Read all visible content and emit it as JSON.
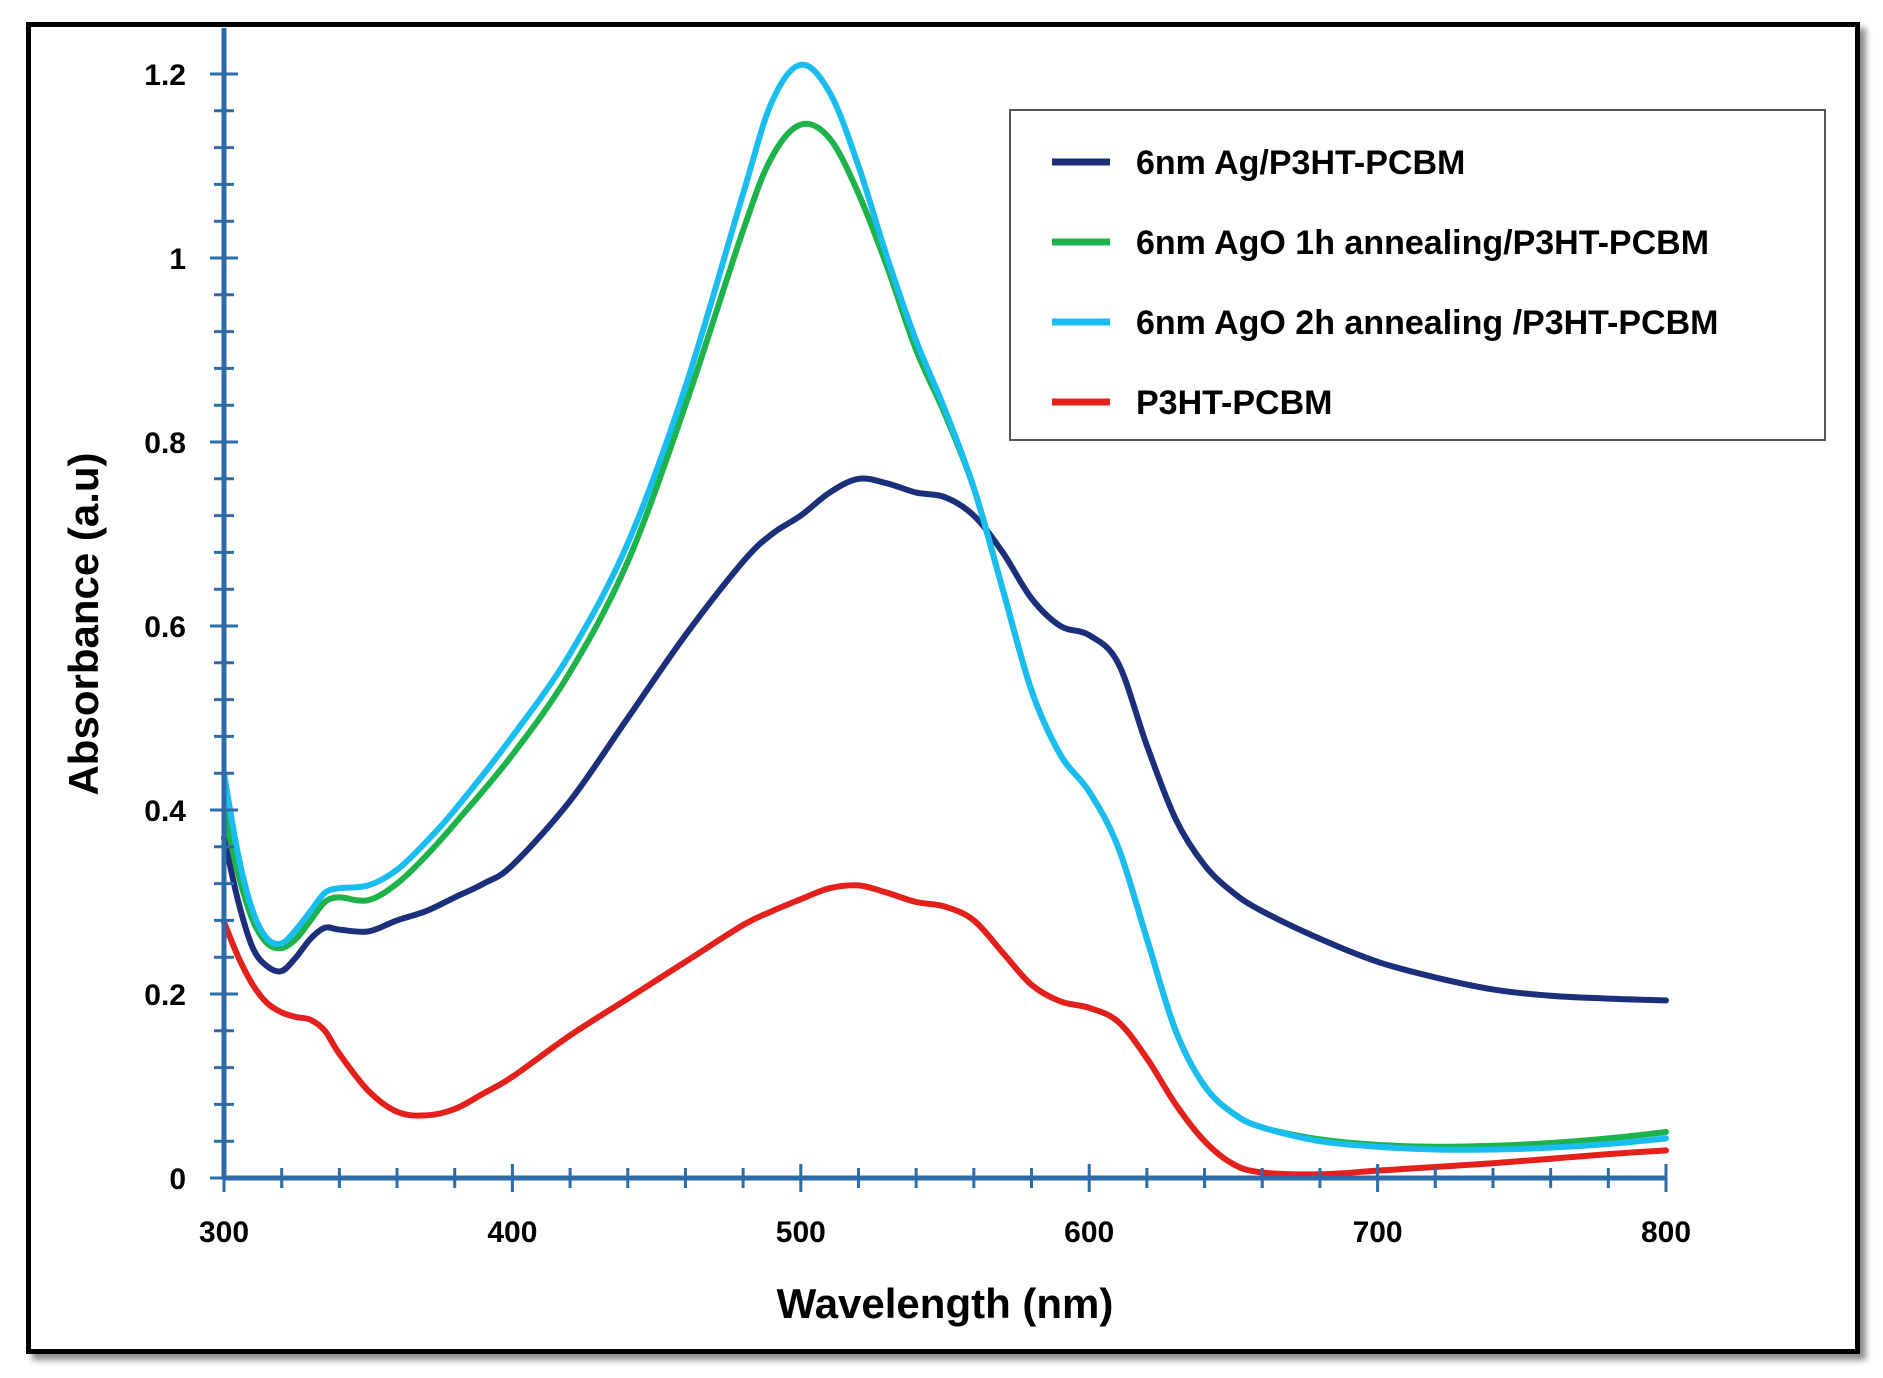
{
  "chart_data": {
    "type": "line",
    "title": "",
    "xlabel": "Wavelength (nm)",
    "ylabel": "Absorbance (a.u)",
    "xlim": [
      300,
      800
    ],
    "ylim": [
      0,
      1.25
    ],
    "xticks": [
      300,
      400,
      500,
      600,
      700,
      800
    ],
    "xtick_labels": [
      "300",
      "400",
      "500",
      "600",
      "700",
      "800"
    ],
    "yticks": [
      0,
      0.2,
      0.4,
      0.6,
      0.8,
      1,
      1.2
    ],
    "ytick_labels": [
      "0",
      "0.2",
      "0.4",
      "0.6",
      "0.8",
      "1",
      "1.2"
    ],
    "grid": false,
    "legend_position": "top-right",
    "series": [
      {
        "name": "6nm Ag/P3HT-PCBM",
        "color": "#1b2f7a",
        "x": [
          300,
          305,
          310,
          315,
          320,
          325,
          330,
          335,
          340,
          350,
          360,
          370,
          380,
          390,
          400,
          420,
          440,
          460,
          480,
          490,
          500,
          510,
          520,
          530,
          540,
          550,
          560,
          570,
          580,
          590,
          600,
          610,
          620,
          630,
          640,
          650,
          660,
          680,
          700,
          720,
          740,
          760,
          780,
          800
        ],
        "y": [
          0.37,
          0.3,
          0.25,
          0.23,
          0.225,
          0.24,
          0.26,
          0.272,
          0.27,
          0.268,
          0.28,
          0.29,
          0.305,
          0.32,
          0.34,
          0.41,
          0.5,
          0.59,
          0.67,
          0.7,
          0.72,
          0.745,
          0.76,
          0.755,
          0.745,
          0.74,
          0.72,
          0.68,
          0.63,
          0.6,
          0.59,
          0.56,
          0.47,
          0.39,
          0.34,
          0.31,
          0.29,
          0.26,
          0.235,
          0.218,
          0.205,
          0.198,
          0.195,
          0.193
        ]
      },
      {
        "name": "6nm AgO 1h annealing/P3HT-PCBM",
        "color": "#1db34a",
        "x": [
          300,
          305,
          310,
          315,
          320,
          325,
          330,
          335,
          340,
          350,
          360,
          370,
          380,
          400,
          420,
          440,
          460,
          480,
          490,
          500,
          510,
          520,
          530,
          540,
          550,
          560,
          570,
          580,
          590,
          600,
          610,
          620,
          630,
          640,
          650,
          660,
          680,
          700,
          720,
          740,
          760,
          780,
          800
        ],
        "y": [
          0.4,
          0.33,
          0.28,
          0.255,
          0.25,
          0.26,
          0.28,
          0.3,
          0.305,
          0.302,
          0.32,
          0.35,
          0.385,
          0.46,
          0.55,
          0.67,
          0.84,
          1.03,
          1.11,
          1.145,
          1.13,
          1.07,
          0.99,
          0.9,
          0.83,
          0.75,
          0.64,
          0.53,
          0.46,
          0.42,
          0.36,
          0.26,
          0.16,
          0.1,
          0.07,
          0.055,
          0.042,
          0.036,
          0.034,
          0.035,
          0.038,
          0.043,
          0.05
        ]
      },
      {
        "name": "6nm AgO 2h annealing /P3HT-PCBM",
        "color": "#19bdf0",
        "x": [
          300,
          305,
          310,
          315,
          320,
          325,
          330,
          335,
          340,
          350,
          360,
          370,
          380,
          400,
          420,
          440,
          460,
          480,
          490,
          500,
          510,
          520,
          530,
          540,
          550,
          560,
          570,
          580,
          590,
          600,
          610,
          620,
          630,
          640,
          650,
          660,
          680,
          700,
          720,
          740,
          760,
          780,
          800
        ],
        "y": [
          0.44,
          0.35,
          0.29,
          0.26,
          0.255,
          0.27,
          0.29,
          0.31,
          0.315,
          0.318,
          0.335,
          0.365,
          0.4,
          0.48,
          0.57,
          0.69,
          0.86,
          1.07,
          1.17,
          1.21,
          1.18,
          1.1,
          1.0,
          0.91,
          0.835,
          0.75,
          0.64,
          0.53,
          0.46,
          0.42,
          0.36,
          0.26,
          0.16,
          0.1,
          0.07,
          0.055,
          0.04,
          0.034,
          0.031,
          0.031,
          0.033,
          0.037,
          0.043
        ]
      },
      {
        "name": "P3HT-PCBM",
        "color": "#e3201b",
        "x": [
          300,
          305,
          310,
          315,
          320,
          325,
          330,
          335,
          340,
          350,
          360,
          370,
          380,
          390,
          400,
          420,
          440,
          460,
          480,
          490,
          500,
          510,
          520,
          530,
          540,
          550,
          560,
          570,
          580,
          590,
          600,
          610,
          620,
          630,
          640,
          650,
          660,
          680,
          700,
          720,
          740,
          760,
          780,
          800
        ],
        "y": [
          0.278,
          0.24,
          0.21,
          0.19,
          0.18,
          0.175,
          0.172,
          0.16,
          0.135,
          0.095,
          0.072,
          0.068,
          0.075,
          0.092,
          0.11,
          0.155,
          0.195,
          0.235,
          0.275,
          0.29,
          0.303,
          0.315,
          0.318,
          0.31,
          0.3,
          0.295,
          0.28,
          0.245,
          0.21,
          0.192,
          0.185,
          0.17,
          0.13,
          0.08,
          0.04,
          0.015,
          0.006,
          0.004,
          0.008,
          0.012,
          0.016,
          0.021,
          0.026,
          0.03
        ]
      }
    ]
  },
  "theme": {
    "axis_color": "#2c6aa8",
    "text_color": "#000000",
    "frame_color": "#000000"
  }
}
